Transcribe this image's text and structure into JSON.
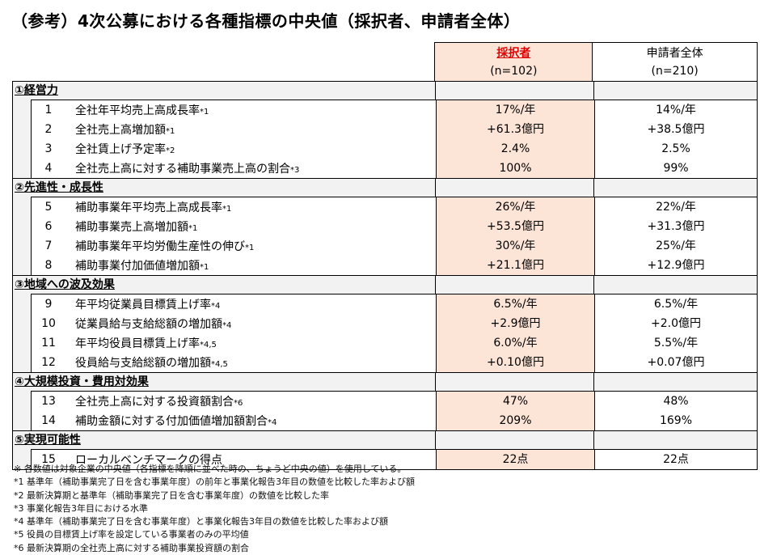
{
  "title": "（参考）4次公募における各種指標の中央値（採択者、申請者全体）",
  "columns": {
    "adopted_label": "採択者",
    "adopted_n": "(n=102)",
    "all_label": "申請者全体",
    "all_n": "(n=210)"
  },
  "sections": [
    {
      "label": "①経営力",
      "items": [
        {
          "num": "1",
          "name": "全社年平均売上高成長率",
          "note": "*1",
          "adopted": "17%/年",
          "all": "14%/年"
        },
        {
          "num": "2",
          "name": "全社売上高増加額",
          "note": "*1",
          "adopted": "+61.3億円",
          "all": "+38.5億円"
        },
        {
          "num": "3",
          "name": "全社賃上げ予定率",
          "note": "*2",
          "adopted": "2.4%",
          "all": "2.5%"
        },
        {
          "num": "4",
          "name": "全社売上高に対する補助事業売上高の割合",
          "note": "*3",
          "adopted": "100%",
          "all": "99%"
        }
      ]
    },
    {
      "label": "②先進性・成長性",
      "items": [
        {
          "num": "5",
          "name": "補助事業年平均売上高成長率",
          "note": "*1",
          "adopted": "26%/年",
          "all": "22%/年"
        },
        {
          "num": "6",
          "name": "補助事業売上高増加額",
          "note": "*1",
          "adopted": "+53.5億円",
          "all": "+31.3億円"
        },
        {
          "num": "7",
          "name": "補助事業年平均労働生産性の伸び",
          "note": "*1",
          "adopted": "30%/年",
          "all": "25%/年"
        },
        {
          "num": "8",
          "name": "補助事業付加価値増加額",
          "note": "*1",
          "adopted": "+21.1億円",
          "all": "+12.9億円"
        }
      ]
    },
    {
      "label": "③地域への波及効果",
      "items": [
        {
          "num": "9",
          "name": "年平均従業員目標賃上げ率",
          "note": "*4",
          "adopted": "6.5%/年",
          "all": "6.5%/年"
        },
        {
          "num": "10",
          "name": "従業員給与支給総額の増加額",
          "note": "*4",
          "adopted": "+2.9億円",
          "all": "+2.0億円"
        },
        {
          "num": "11",
          "name": "年平均役員目標賃上げ率",
          "note": "*4,5",
          "adopted": "6.0%/年",
          "all": "5.5%/年"
        },
        {
          "num": "12",
          "name": "役員給与支給総額の増加額",
          "note": "*4,5",
          "adopted": "+0.10億円",
          "all": "+0.07億円"
        }
      ]
    },
    {
      "label": "④大規模投資・費用対効果",
      "items": [
        {
          "num": "13",
          "name": "全社売上高に対する投資額割合",
          "note": "*6",
          "adopted": "47%",
          "all": "48%"
        },
        {
          "num": "14",
          "name": "補助金額に対する付加価値増加額割合",
          "note": "*4",
          "adopted": "209%",
          "all": "169%"
        }
      ]
    },
    {
      "label": "⑤実現可能性",
      "items": [
        {
          "num": "15",
          "name": "ローカルベンチマークの得点",
          "note": "",
          "adopted": "22点",
          "all": "22点"
        }
      ]
    }
  ],
  "footnotes": [
    "※ 各数値は対象企業の中央値（各指標を降順に並べた時の、ちょうど中央の値）を使用している。",
    "*1 基準年（補助事業完了日を含む事業年度）の前年と事業化報告3年目の数値を比較した率および額",
    "*2 最新決算期と基準年（補助事業完了日を含む事業年度）の数値を比較した率",
    "*3 事業化報告3年目における水準",
    "*4 基準年（補助事業完了日を含む事業年度）と事業化報告3年目の数値を比較した率および額",
    "*5 役員の目標賃上げ率を設定している事業者のみの平均値",
    "*6 最新決算期の全社売上高に対する補助事業投資額の割合"
  ]
}
